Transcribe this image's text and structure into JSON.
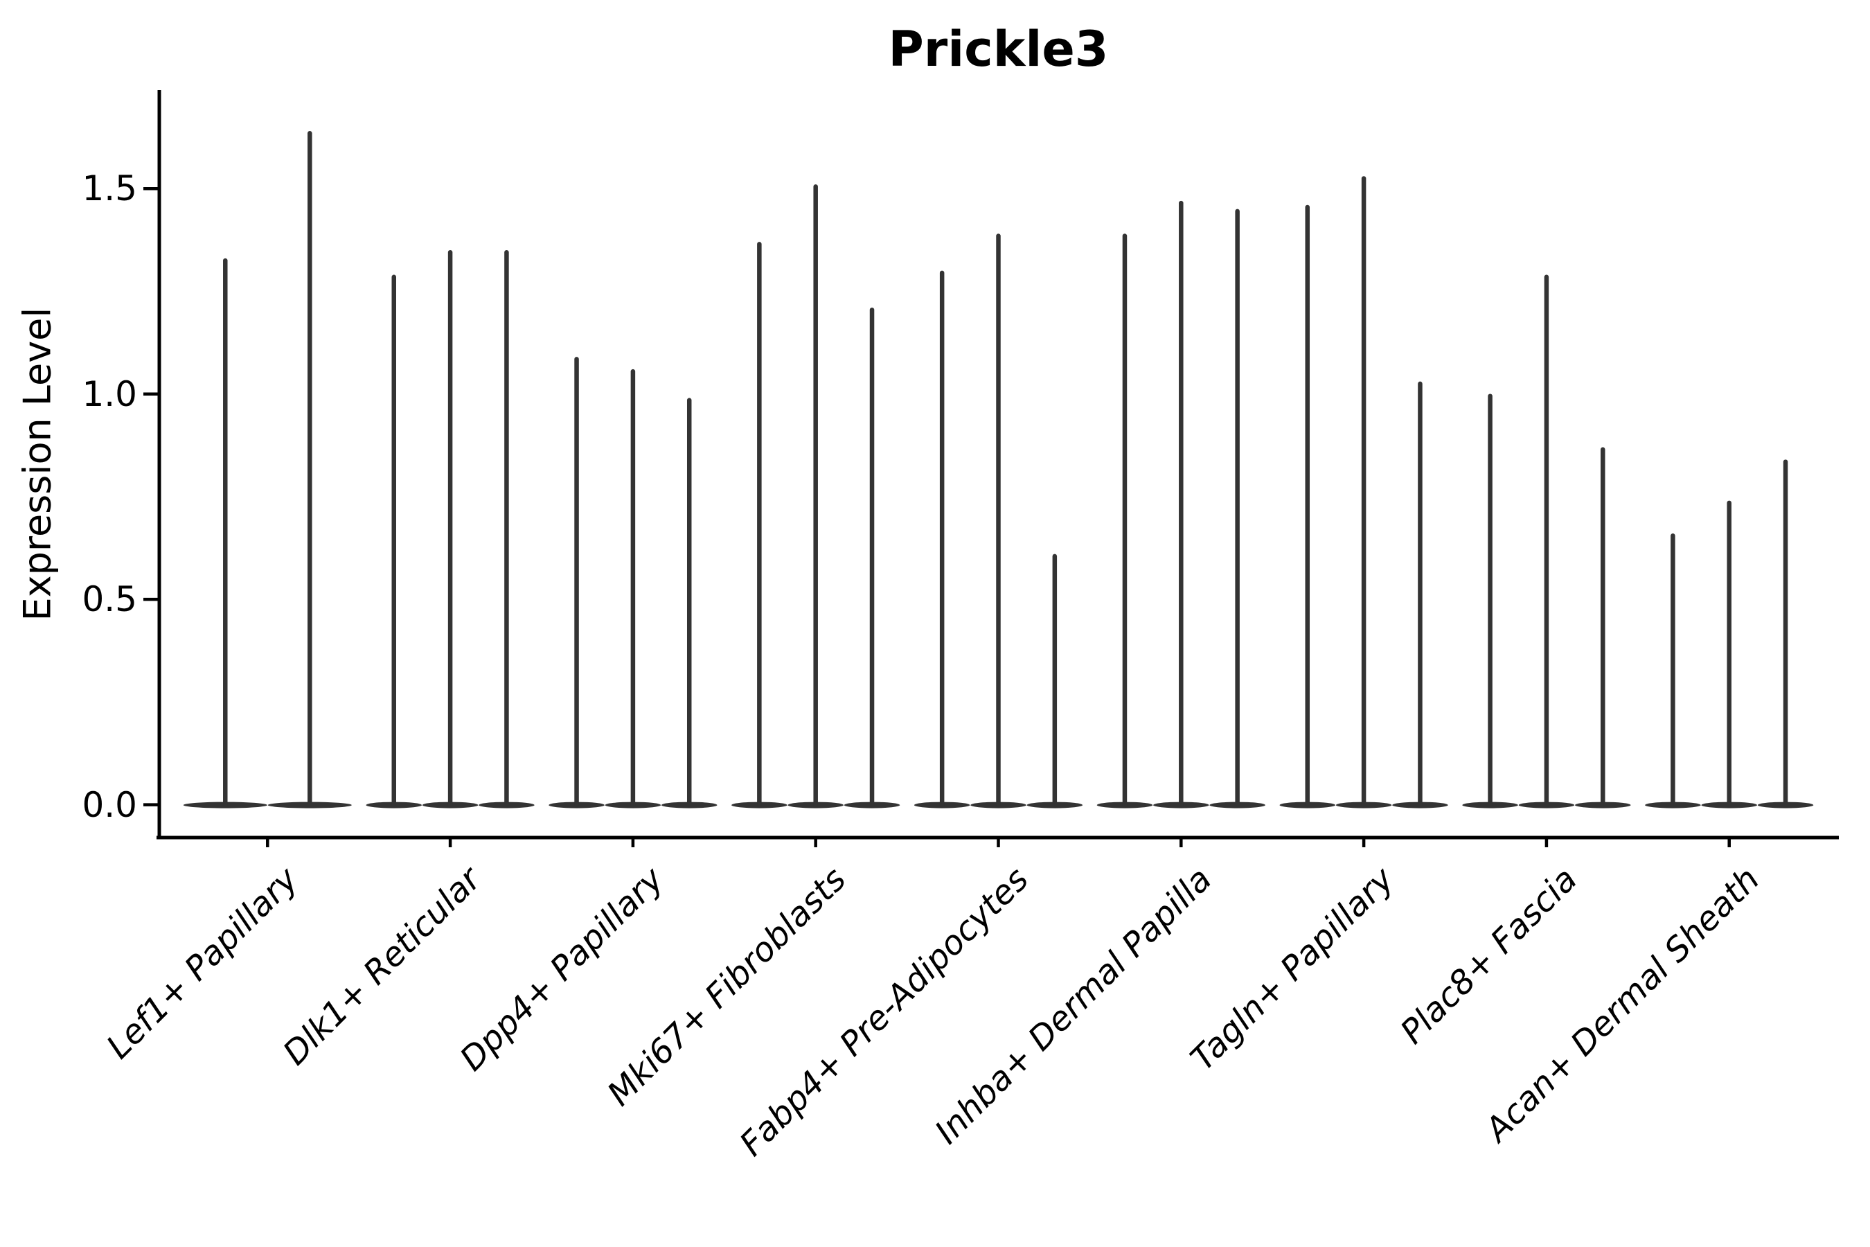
{
  "chart_data": {
    "type": "violin",
    "title": "Prickle3",
    "xlabel": "",
    "ylabel": "Expression Level",
    "ylim": [
      -0.08,
      1.74
    ],
    "ytick_values": [
      0,
      0.5,
      1.0,
      1.5
    ],
    "ytick_labels": [
      "0.0",
      "0.5",
      "1.0",
      "1.5"
    ],
    "grid": false,
    "legend": "none",
    "style": {
      "violin_color": "#333333",
      "axis_color": "#000000",
      "background_color": "#ffffff"
    },
    "groups": [
      {
        "label": "Lef1+ Papillary",
        "violin_maxima": [
          1.33,
          1.64
        ]
      },
      {
        "label": "Dlk1+ Reticular",
        "violin_maxima": [
          1.29,
          1.35,
          1.35
        ]
      },
      {
        "label": "Dpp4+ Papillary",
        "violin_maxima": [
          1.09,
          1.06,
          0.99
        ]
      },
      {
        "label": "Mki67+ Fibroblasts",
        "violin_maxima": [
          1.37,
          1.51,
          1.21
        ]
      },
      {
        "label": "Fabp4+ Pre-Adipocytes",
        "violin_maxima": [
          1.3,
          1.39,
          0.61
        ]
      },
      {
        "label": "Inhba+ Dermal Papilla",
        "violin_maxima": [
          1.39,
          1.47,
          1.45
        ]
      },
      {
        "label": "Tagln+ Papillary",
        "violin_maxima": [
          1.46,
          1.53,
          1.03
        ]
      },
      {
        "label": "Plac8+ Fascia",
        "violin_maxima": [
          1.0,
          1.29,
          0.87
        ]
      },
      {
        "label": "Acan+ Dermal Sheath",
        "violin_maxima": [
          0.66,
          0.74,
          0.84
        ]
      }
    ]
  }
}
